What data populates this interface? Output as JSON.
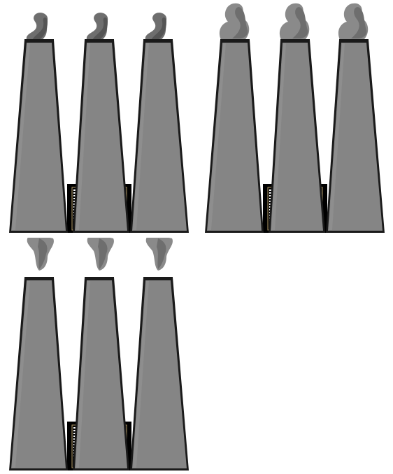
{
  "sprite_sheet": {
    "subject": "factory-smokestacks",
    "frame_count": 3,
    "frames": [
      {
        "id": "frame-1",
        "smoke_phase": "low-curl",
        "stack_count": 3,
        "has_vent_grille": true
      },
      {
        "id": "frame-2",
        "smoke_phase": "high-puff",
        "stack_count": 3,
        "has_vent_grille": true
      },
      {
        "id": "frame-3",
        "smoke_phase": "drifting-down",
        "stack_count": 3,
        "has_vent_grille": true
      }
    ],
    "palette": {
      "background": "#ffffff",
      "stack_fill": "#858585",
      "stack_outline": "#1a1a1a",
      "stack_highlight": "#9a9a9a",
      "smoke_dark": "#555555",
      "smoke_mid": "#6e6e6e",
      "smoke_light": "#8a8a8a",
      "grille_frame": "#000000",
      "grille_slat": "#ffffff",
      "grille_edge": "#b9a06b"
    }
  }
}
